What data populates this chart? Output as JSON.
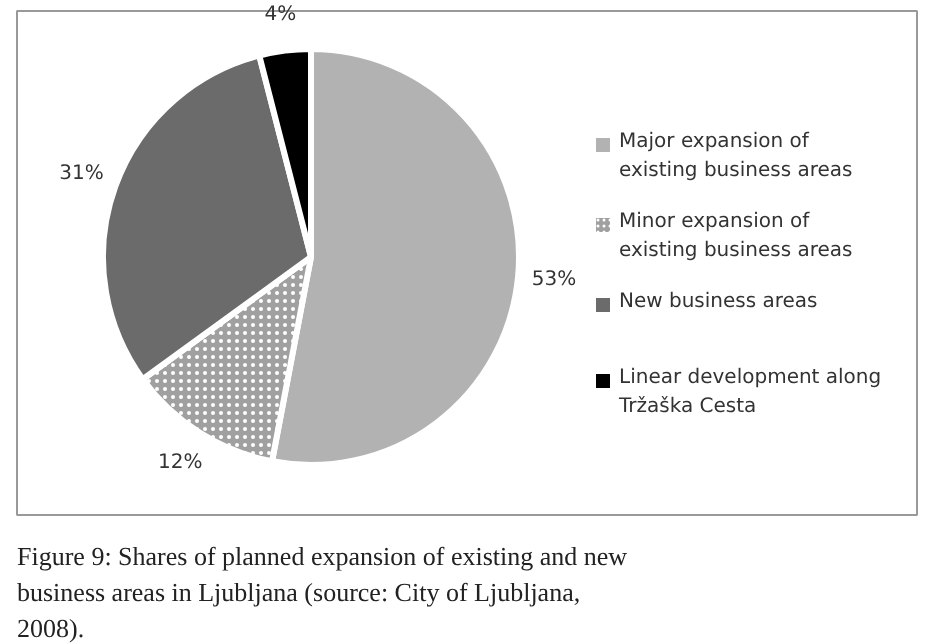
{
  "chart_data": {
    "type": "pie",
    "categories": [
      "Major expansion of existing business areas",
      "Minor expansion of existing business areas",
      "New business areas",
      "Linear development along Tržaška Cesta"
    ],
    "values": [
      53,
      12,
      31,
      4
    ],
    "colors": [
      "#b2b2b2",
      "#a0a0a0",
      "#6b6b6b",
      "#000000"
    ],
    "value_labels": [
      "53%",
      "12%",
      "31%",
      "4%"
    ],
    "legend": "right",
    "annotations": [
      "Figure 9: Shares of planned expansion of existing and new business areas in Ljubljana (source: City of Ljubljana, 2008)."
    ]
  }
}
